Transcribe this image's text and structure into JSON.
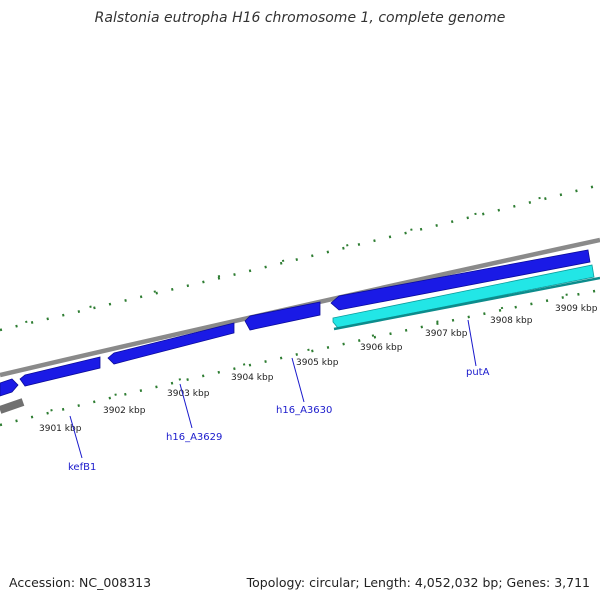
{
  "title": "Ralstonia eutropha H16 chromosome 1, complete genome",
  "accession": "Accession: NC_008313",
  "summary": "Topology: circular; Length: 4,052,032 bp; Genes: 3,711",
  "colors": {
    "backbone": "#8a8a8a",
    "forward_gene": "#1a1ae6",
    "reverse_gene": "#22e6e6",
    "tick": "#2e7d32",
    "label": "#1a1acc"
  },
  "position_labels": [
    "3901 kbp",
    "3902 kbp",
    "3903 kbp",
    "3904 kbp",
    "3905 kbp",
    "3906 kbp",
    "3907 kbp",
    "3908 kbp",
    "3909 kbp"
  ],
  "gene_labels": [
    "kefB1",
    "h16_A3629",
    "h16_A3630",
    "putA"
  ]
}
